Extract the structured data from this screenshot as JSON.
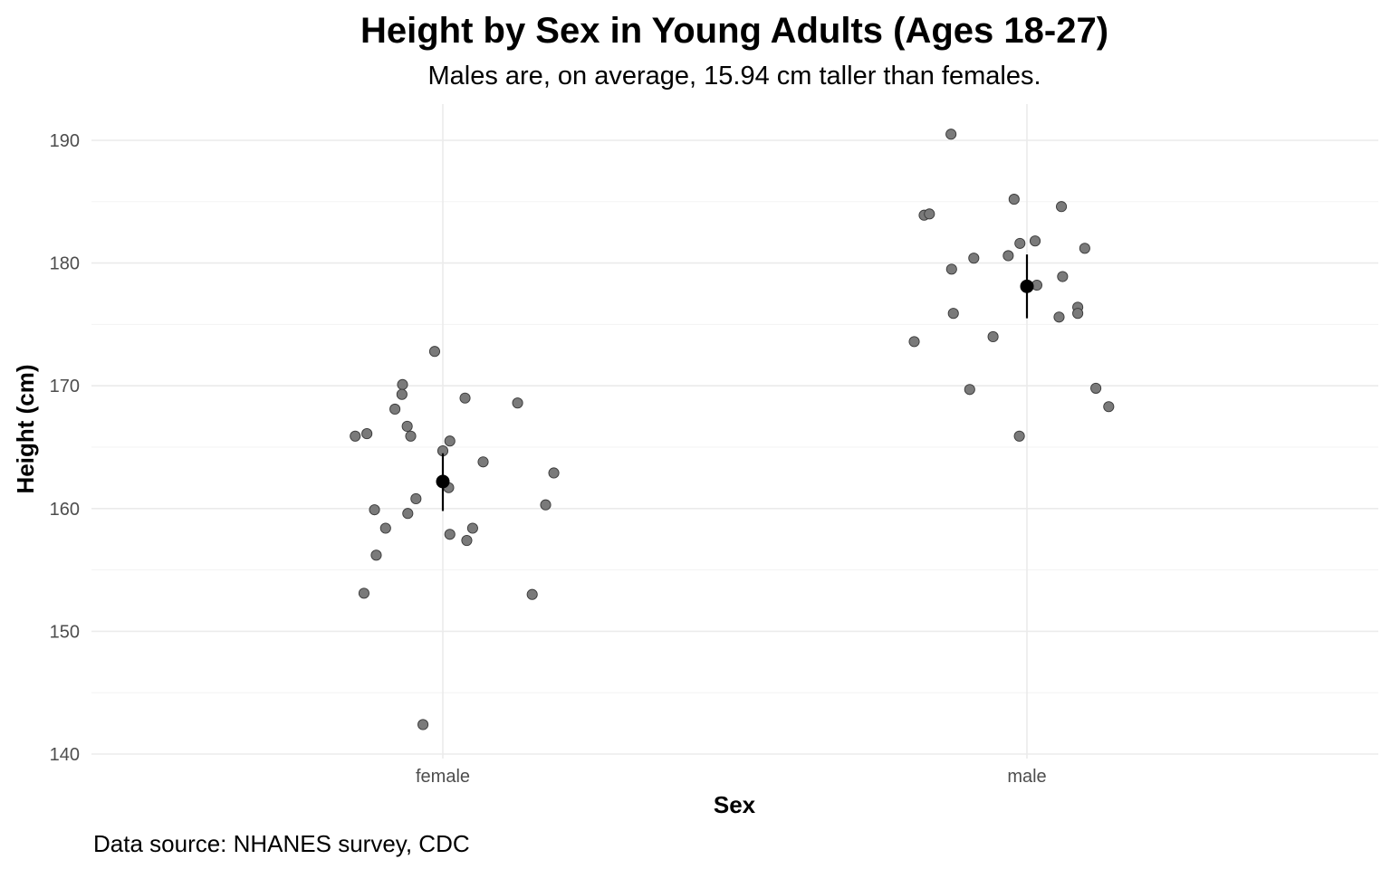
{
  "chart_data": {
    "type": "scatter",
    "title": "Height by Sex in Young Adults (Ages 18-27)",
    "subtitle": "Males are, on average, 15.94 cm taller than females.",
    "xlabel": "Sex",
    "ylabel": "Height (cm)",
    "caption": "Data source: NHANES survey, CDC",
    "categories": [
      "female",
      "male"
    ],
    "ylim": [
      139,
      193
    ],
    "y_ticks": [
      140,
      150,
      160,
      170,
      180,
      190
    ],
    "grid": true,
    "point_color": "#7a7a7a",
    "point_stroke": "#3a3a3a",
    "mean_color": "#000000",
    "series": [
      {
        "category": "female",
        "points": [
          {
            "jitter": -0.15,
            "y": 165.9
          },
          {
            "jitter": -0.13,
            "y": 166.1
          },
          {
            "jitter": -0.135,
            "y": 153.1
          },
          {
            "jitter": -0.117,
            "y": 159.9
          },
          {
            "jitter": -0.114,
            "y": 156.2
          },
          {
            "jitter": -0.098,
            "y": 158.4
          },
          {
            "jitter": -0.082,
            "y": 168.1
          },
          {
            "jitter": -0.069,
            "y": 170.1
          },
          {
            "jitter": -0.07,
            "y": 169.3
          },
          {
            "jitter": -0.061,
            "y": 166.7
          },
          {
            "jitter": -0.055,
            "y": 165.9
          },
          {
            "jitter": -0.06,
            "y": 159.6
          },
          {
            "jitter": -0.046,
            "y": 160.8
          },
          {
            "jitter": -0.034,
            "y": 142.4
          },
          {
            "jitter": -0.014,
            "y": 172.8
          },
          {
            "jitter": 0.0,
            "y": 164.7
          },
          {
            "jitter": 0.012,
            "y": 165.5
          },
          {
            "jitter": 0.01,
            "y": 161.7
          },
          {
            "jitter": 0.012,
            "y": 157.9
          },
          {
            "jitter": 0.038,
            "y": 169.0
          },
          {
            "jitter": 0.041,
            "y": 157.4
          },
          {
            "jitter": 0.051,
            "y": 158.4
          },
          {
            "jitter": 0.069,
            "y": 163.8
          },
          {
            "jitter": 0.128,
            "y": 168.6
          },
          {
            "jitter": 0.153,
            "y": 153.0
          },
          {
            "jitter": 0.176,
            "y": 160.3
          },
          {
            "jitter": 0.19,
            "y": 162.9
          }
        ],
        "mean": 162.2,
        "ci": [
          159.8,
          164.5
        ]
      },
      {
        "category": "male",
        "points": [
          {
            "jitter": -0.193,
            "y": 173.6
          },
          {
            "jitter": -0.176,
            "y": 183.9
          },
          {
            "jitter": -0.167,
            "y": 184.0
          },
          {
            "jitter": -0.13,
            "y": 190.5
          },
          {
            "jitter": -0.129,
            "y": 179.5
          },
          {
            "jitter": -0.126,
            "y": 175.9
          },
          {
            "jitter": -0.098,
            "y": 169.7
          },
          {
            "jitter": -0.091,
            "y": 180.4
          },
          {
            "jitter": -0.058,
            "y": 174.0
          },
          {
            "jitter": -0.032,
            "y": 180.6
          },
          {
            "jitter": -0.022,
            "y": 185.2
          },
          {
            "jitter": -0.012,
            "y": 181.6
          },
          {
            "jitter": -0.013,
            "y": 165.9
          },
          {
            "jitter": 0.014,
            "y": 181.8
          },
          {
            "jitter": 0.017,
            "y": 178.2
          },
          {
            "jitter": 0.055,
            "y": 175.6
          },
          {
            "jitter": 0.059,
            "y": 184.6
          },
          {
            "jitter": 0.061,
            "y": 178.9
          },
          {
            "jitter": 0.087,
            "y": 176.4
          },
          {
            "jitter": 0.087,
            "y": 175.9
          },
          {
            "jitter": 0.099,
            "y": 181.2
          },
          {
            "jitter": 0.118,
            "y": 169.8
          },
          {
            "jitter": 0.14,
            "y": 168.3
          }
        ],
        "mean": 178.1,
        "ci": [
          175.5,
          180.7
        ]
      }
    ]
  }
}
